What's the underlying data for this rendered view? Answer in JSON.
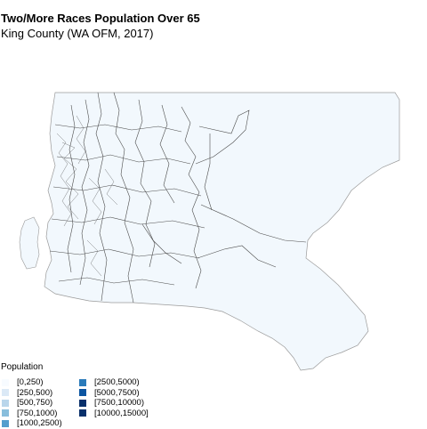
{
  "header": {
    "title": "Two/More Races Population Over 65",
    "subtitle": "King County (WA OFM, 2017)"
  },
  "map": {
    "region_fill": "#f2f8fd",
    "boundary_color": "#4d4d4d",
    "outline_color": "#9a9a9a"
  },
  "legend": {
    "title": "Population",
    "items": [
      {
        "label": "[0,250)",
        "color": "#f7fbff"
      },
      {
        "label": "[250,500)",
        "color": "#dbe9f6"
      },
      {
        "label": "[500,750)",
        "color": "#bad6eb"
      },
      {
        "label": "[750,1000)",
        "color": "#89bedc"
      },
      {
        "label": "[1000,2500)",
        "color": "#539ecd"
      },
      {
        "label": "[2500,5000)",
        "color": "#2b7bba"
      },
      {
        "label": "[5000,7500)",
        "color": "#0b55a1"
      },
      {
        "label": "[7500,10000)",
        "color": "#08306b"
      },
      {
        "label": "[10000,15000]",
        "color": "#08306b"
      }
    ]
  }
}
